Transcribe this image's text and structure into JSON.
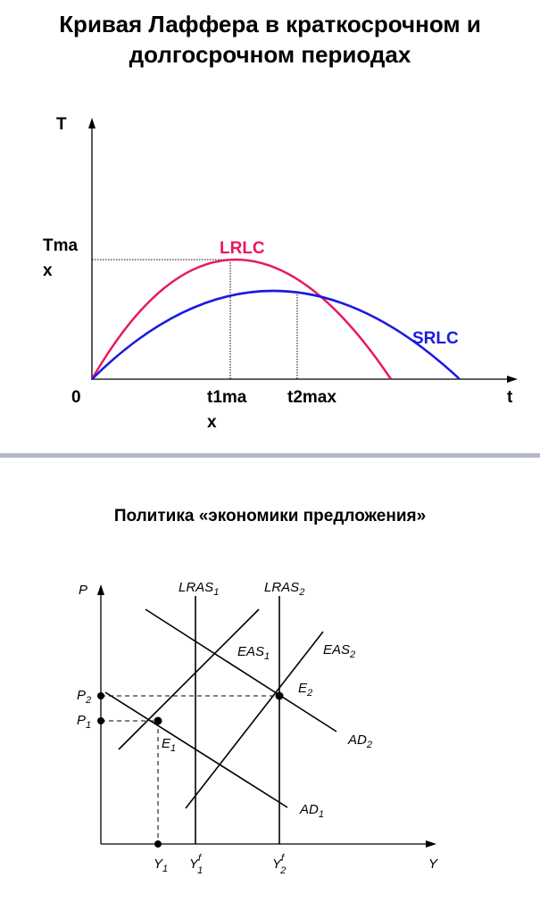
{
  "laffer": {
    "title": "Кривая Лаффера в краткосрочном и долгосрочном периодах",
    "y_axis": "T",
    "x_axis": "t",
    "origin": "0",
    "tmax": "Tmax",
    "t1max": "t1max",
    "t2max": "t2max",
    "lrlc": "LRLC",
    "srlc": "SRLC"
  },
  "supply_policy": {
    "title": "Политика «экономики предложения»",
    "y_axis": "P",
    "x_axis": "Y",
    "p2": {
      "text": "P",
      "sub": "2"
    },
    "p1": {
      "text": "P",
      "sub": "1"
    },
    "lras1": {
      "text": "LRAS",
      "sub": "1"
    },
    "lras2": {
      "text": "LRAS",
      "sub": "2"
    },
    "eas1": {
      "text": "EAS",
      "sub": "1"
    },
    "eas2": {
      "text": "EAS",
      "sub": "2"
    },
    "e1": {
      "text": "E",
      "sub": "1"
    },
    "e2": {
      "text": "E",
      "sub": "2"
    },
    "ad1": {
      "text": "AD",
      "sub": "1"
    },
    "ad2": {
      "text": "AD",
      "sub": "2"
    },
    "y1": {
      "text": "Y",
      "sub": "1"
    },
    "y1f": {
      "text": "Y",
      "sup": "f",
      "sub": "1"
    },
    "y2f": {
      "text": "Y",
      "sup": "f",
      "sub": "2"
    }
  }
}
